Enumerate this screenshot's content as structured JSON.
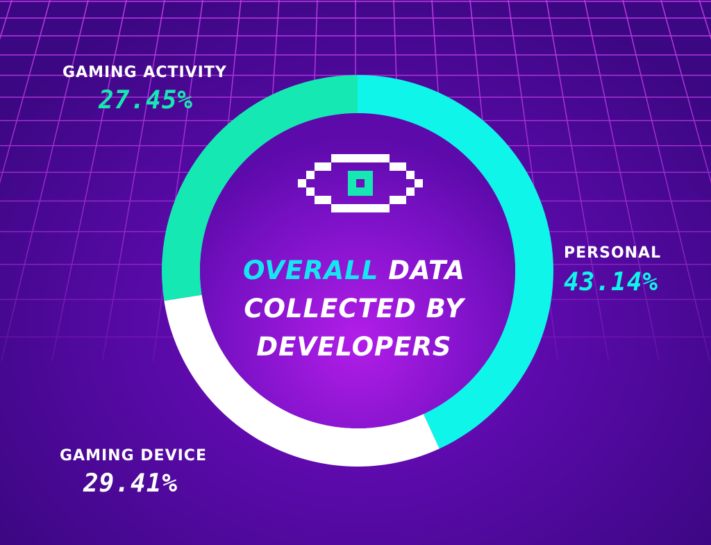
{
  "colors": {
    "personal": "#0ff5ea",
    "gaming_activity": "#16e8b4",
    "gaming_device": "#ffffff",
    "accent_text": "#16e6f2",
    "grid": "#c03ce6",
    "eye": "#ffffff",
    "eye_pupil": "#16e8b4"
  },
  "center_title": {
    "highlight": "OVERALL",
    "line1_rest": "DATA",
    "line2": "COLLECTED BY",
    "line3": "DEVELOPERS"
  },
  "center_icon": "pixel-eye-icon",
  "chart_data": {
    "type": "pie",
    "style": "donut",
    "title": "OVERALL DATA COLLECTED BY DEVELOPERS",
    "slices": [
      {
        "key": "personal",
        "label": "PERSONAL",
        "value": 43.14,
        "value_label": "43.14%"
      },
      {
        "key": "gaming_device",
        "label": "GAMING DEVICE",
        "value": 29.41,
        "value_label": "29.41%"
      },
      {
        "key": "gaming_activity",
        "label": "GAMING ACTIVITY",
        "value": 27.45,
        "value_label": "27.45%"
      }
    ]
  }
}
